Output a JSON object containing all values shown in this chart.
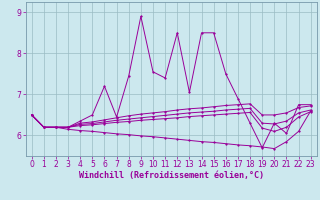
{
  "xlabel": "Windchill (Refroidissement éolien,°C)",
  "background_color": "#cce8ee",
  "line_color": "#990099",
  "grid_color": "#9bbcc4",
  "x": [
    0,
    1,
    2,
    3,
    4,
    5,
    6,
    7,
    8,
    9,
    10,
    11,
    12,
    13,
    14,
    15,
    16,
    17,
    18,
    19,
    20,
    21,
    22,
    23
  ],
  "series": {
    "main": [
      6.5,
      6.2,
      6.2,
      6.2,
      6.35,
      6.5,
      7.2,
      6.45,
      7.45,
      8.9,
      7.55,
      7.4,
      8.5,
      7.05,
      8.5,
      8.5,
      7.5,
      6.9,
      6.3,
      5.7,
      6.3,
      6.05,
      6.75,
      6.75
    ],
    "line2": [
      6.5,
      6.2,
      6.2,
      6.2,
      6.3,
      6.33,
      6.38,
      6.43,
      6.48,
      6.52,
      6.55,
      6.58,
      6.62,
      6.65,
      6.67,
      6.7,
      6.73,
      6.75,
      6.77,
      6.5,
      6.5,
      6.55,
      6.68,
      6.72
    ],
    "line3": [
      6.5,
      6.2,
      6.2,
      6.2,
      6.27,
      6.29,
      6.33,
      6.37,
      6.4,
      6.43,
      6.46,
      6.49,
      6.52,
      6.55,
      6.57,
      6.59,
      6.62,
      6.64,
      6.66,
      6.3,
      6.28,
      6.35,
      6.55,
      6.62
    ],
    "line4": [
      6.5,
      6.2,
      6.2,
      6.2,
      6.24,
      6.26,
      6.29,
      6.32,
      6.34,
      6.37,
      6.39,
      6.41,
      6.43,
      6.46,
      6.48,
      6.5,
      6.52,
      6.54,
      6.56,
      6.18,
      6.1,
      6.2,
      6.45,
      6.58
    ],
    "line5": [
      6.5,
      6.2,
      6.2,
      6.15,
      6.12,
      6.1,
      6.07,
      6.04,
      6.02,
      5.99,
      5.97,
      5.94,
      5.91,
      5.88,
      5.85,
      5.83,
      5.8,
      5.77,
      5.75,
      5.72,
      5.68,
      5.85,
      6.1,
      6.6
    ]
  },
  "ylim": [
    5.5,
    9.25
  ],
  "yticks": [
    6,
    7,
    8,
    9
  ],
  "xticks": [
    0,
    1,
    2,
    3,
    4,
    5,
    6,
    7,
    8,
    9,
    10,
    11,
    12,
    13,
    14,
    15,
    16,
    17,
    18,
    19,
    20,
    21,
    22,
    23
  ],
  "xlabel_fontsize": 6,
  "tick_labelsize": 5.5
}
